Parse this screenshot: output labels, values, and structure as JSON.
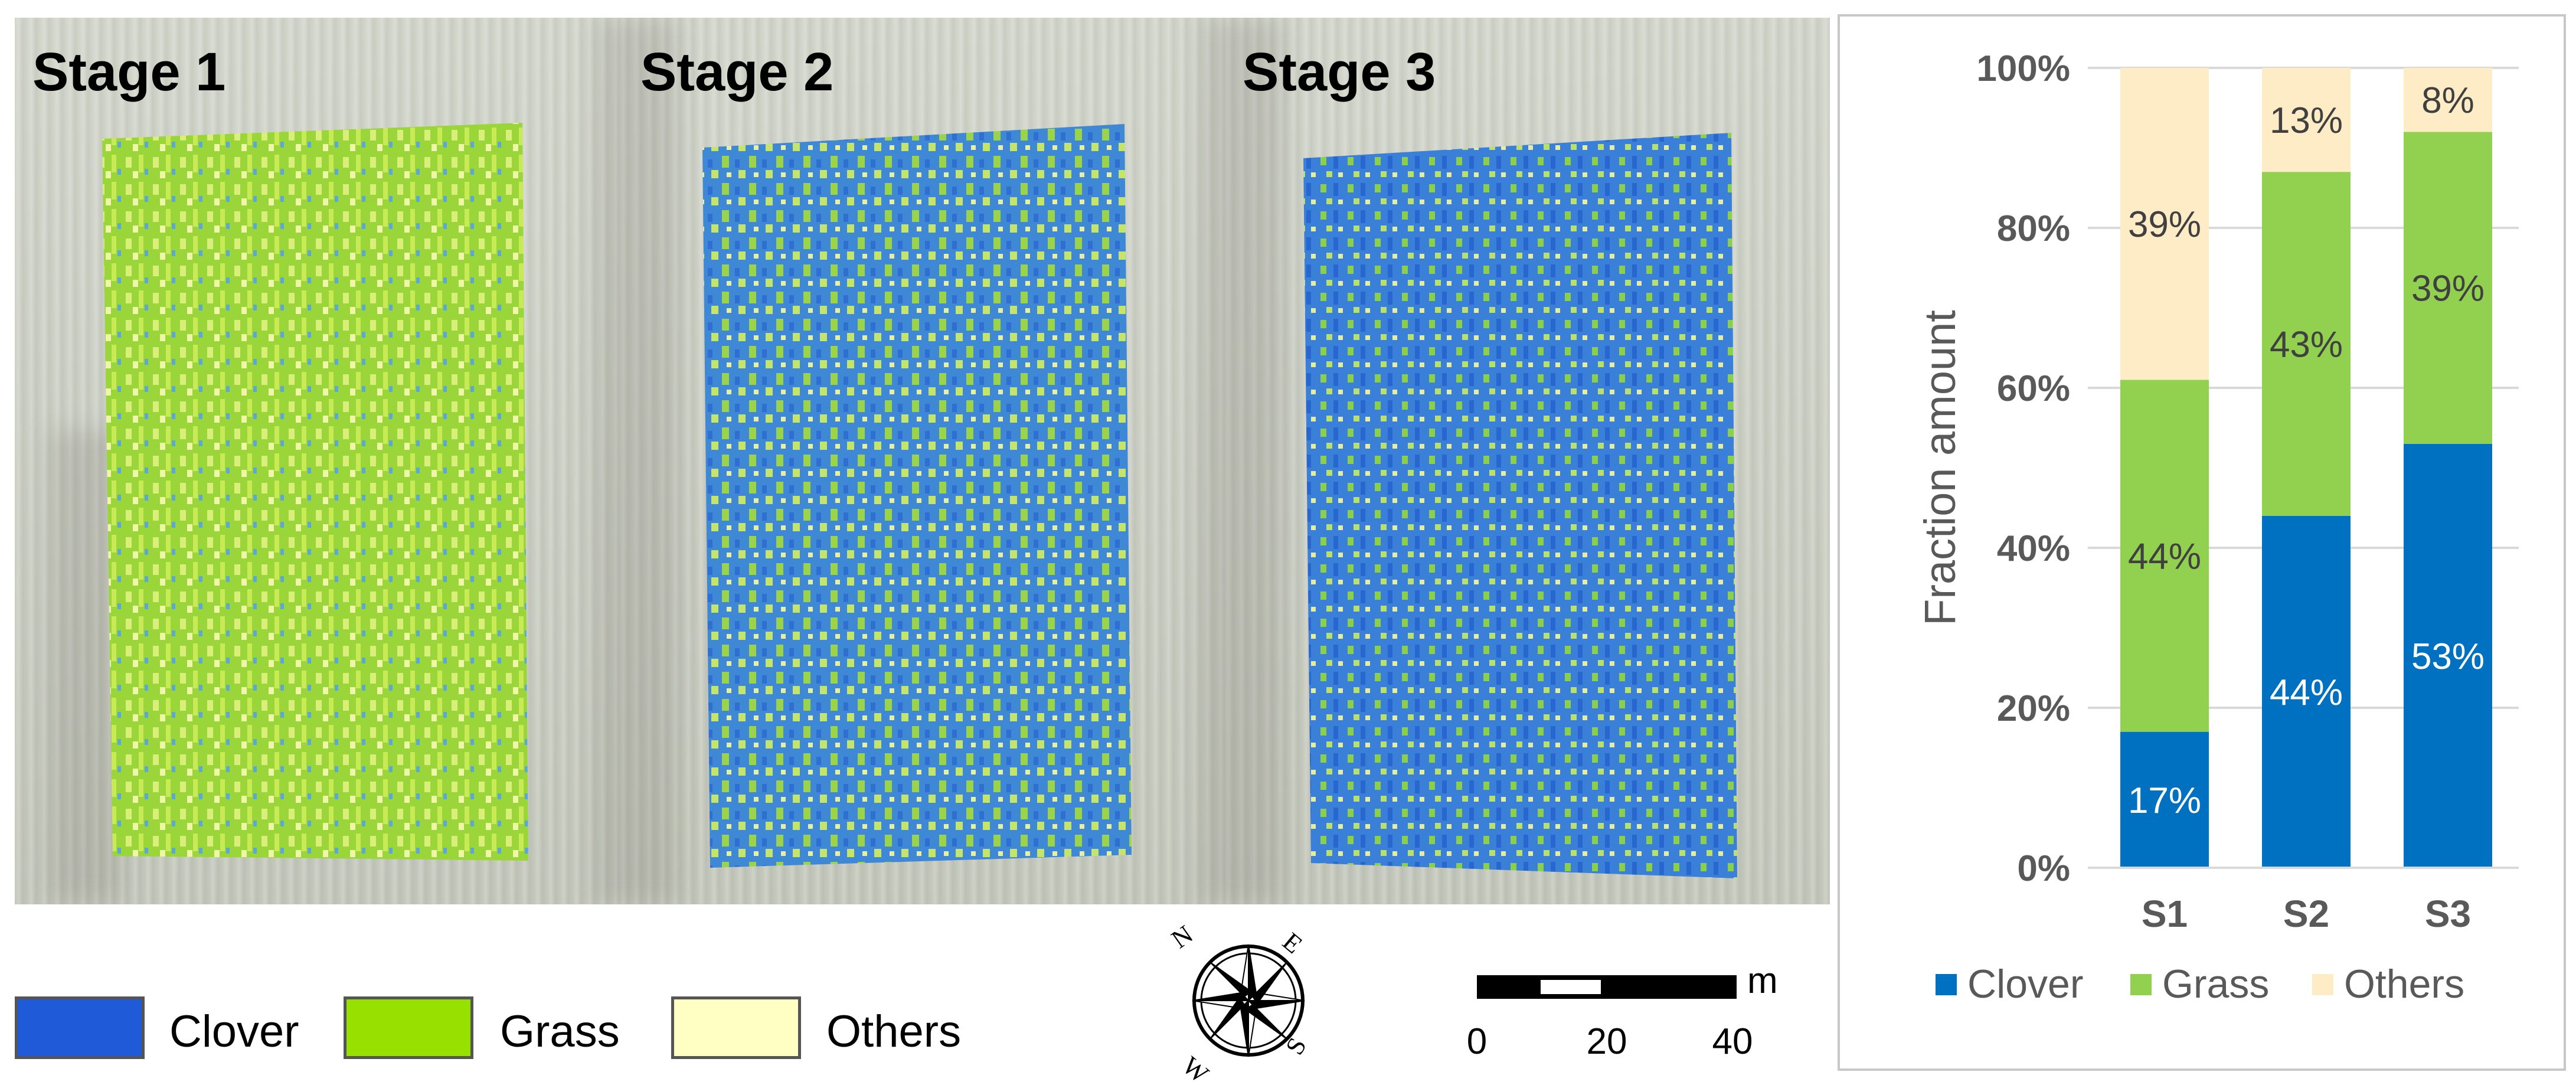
{
  "map_panel": {
    "stages": [
      "Stage 1",
      "Stage 2",
      "Stage 3"
    ],
    "legend": [
      {
        "label": "Clover",
        "color": "#1f5ad8"
      },
      {
        "label": "Grass",
        "color": "#98e000"
      },
      {
        "label": "Others",
        "color": "#ffffc4"
      }
    ],
    "compass_icon": "compass-rose-icon",
    "compass_letters": [
      "N",
      "E",
      "S",
      "W"
    ],
    "scale_bar": {
      "unit": "m",
      "ticks": [
        "0",
        "20",
        "40"
      ]
    }
  },
  "chart_data": {
    "type": "bar",
    "stacked": true,
    "categories": [
      "S1",
      "S2",
      "S3"
    ],
    "series": [
      {
        "name": "Clover",
        "values": [
          17,
          44,
          53
        ],
        "color": "#0070c0"
      },
      {
        "name": "Grass",
        "values": [
          44,
          43,
          39
        ],
        "color": "#92d050"
      },
      {
        "name": "Others",
        "values": [
          39,
          13,
          8
        ],
        "color": "#fdecc6"
      }
    ],
    "data_labels": [
      [
        "17%",
        "44%",
        "53%"
      ],
      [
        "44%",
        "43%",
        "39%"
      ],
      [
        "39%",
        "13%",
        "8%"
      ]
    ],
    "ylabel": "Fraction amount",
    "yticks": [
      "0%",
      "20%",
      "40%",
      "60%",
      "80%",
      "100%"
    ],
    "ylim": [
      0,
      100
    ],
    "grid": true,
    "legend_position": "bottom"
  }
}
